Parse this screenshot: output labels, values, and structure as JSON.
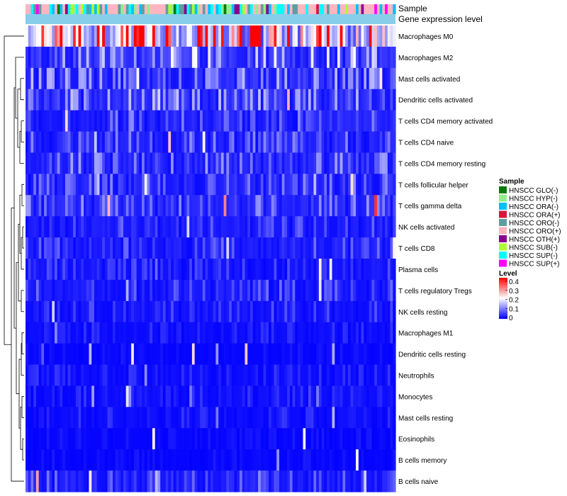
{
  "chart_data": {
    "type": "heatmap",
    "title": "",
    "annotation_tracks": [
      {
        "key": "sample",
        "label": "Sample"
      },
      {
        "key": "level",
        "label": "Gene expression level"
      }
    ],
    "row_labels": [
      "Macrophages M0",
      "Macrophages M2",
      "Mast cells activated",
      "Dendritic cells activated",
      "T cells CD4 memory activated",
      "T cells CD4 naive",
      "T cells CD4 memory resting",
      "T cells follicular helper",
      "T cells gamma delta",
      "NK cells activated",
      "T cells CD8",
      "Plasma cells",
      "T cells regulatory  Tregs",
      "NK cells resting",
      "Macrophages M1",
      "Dendritic cells resting",
      "Neutrophils",
      "Monocytes",
      "Mast cells resting",
      "Eosinophils",
      "B cells memory",
      "B cells naive"
    ],
    "row_mean_level": [
      0.3,
      0.09,
      0.07,
      0.07,
      0.05,
      0.05,
      0.06,
      0.05,
      0.06,
      0.04,
      0.04,
      0.03,
      0.04,
      0.03,
      0.02,
      0.01,
      0.02,
      0.02,
      0.02,
      0.01,
      0.01,
      0.05
    ],
    "n_samples": 140,
    "legend_sample": {
      "title": "Sample",
      "entries": [
        {
          "name": "HNSCC GLO(-)",
          "color": "#0B7A0B"
        },
        {
          "name": "HNSCC HYP(-)",
          "color": "#90EE90"
        },
        {
          "name": "HNSCC ORA(-)",
          "color": "#00BFFF"
        },
        {
          "name": "HNSCC ORA(+)",
          "color": "#DC143C"
        },
        {
          "name": "HNSCC ORO(-)",
          "color": "#5F9EA0"
        },
        {
          "name": "HNSCC ORO(+)",
          "color": "#FFB6C1"
        },
        {
          "name": "HNSCC OTH(+)",
          "color": "#8B008B"
        },
        {
          "name": "HNSCC SUB(-)",
          "color": "#ADFF2F"
        },
        {
          "name": "HNSCC SUP(-)",
          "color": "#00FFFF"
        },
        {
          "name": "HNSCC SUP(+)",
          "color": "#FF00FF"
        }
      ]
    },
    "legend_level": {
      "title": "Level",
      "ticks": [
        "0.4",
        "0.3",
        "0.2",
        "0.1",
        "0"
      ],
      "range": [
        0,
        0.4
      ],
      "colors": [
        "#0000FF",
        "#FFFFFF",
        "#FF0000"
      ]
    },
    "level_bar_color": "#87CEEB"
  }
}
